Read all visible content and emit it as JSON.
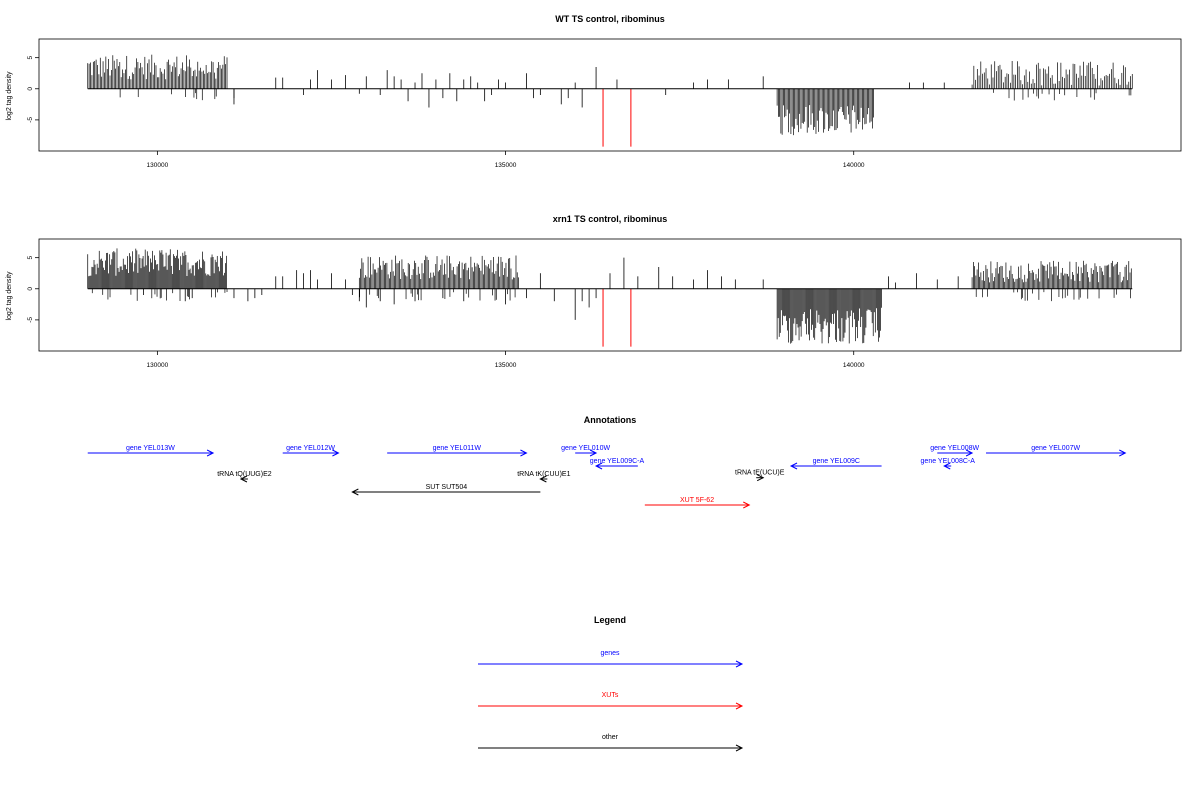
{
  "chart_data": [
    {
      "type": "bar",
      "title": "WT TS control, ribominus",
      "ylabel": "log2 tag density",
      "xlim": [
        128300,
        144700
      ],
      "ylim": [
        -10,
        8
      ],
      "x_ticks": [
        130000,
        135000,
        140000
      ],
      "y_ticks": [
        -5,
        0,
        5
      ],
      "grid": false,
      "red_marks": [
        {
          "x": 136400,
          "y": -9.3
        },
        {
          "x": 136800,
          "y": -9.3
        }
      ],
      "regions": [
        {
          "x_start": 129000,
          "x_end": 131000,
          "min": 1.5,
          "max": 5.5,
          "step": 20,
          "sign": 1
        },
        {
          "x_start": 138900,
          "x_end": 140300,
          "min": 2.5,
          "max": 7.5,
          "step": 18,
          "sign": -1
        },
        {
          "x_start": 141700,
          "x_end": 144000,
          "min": 0.5,
          "max": 4.5,
          "step": 25,
          "sign": 1
        }
      ],
      "sparse": [
        [
          131100,
          -2.5
        ],
        [
          131100,
          -1.5
        ],
        [
          131700,
          1.8
        ],
        [
          131800,
          1.8
        ],
        [
          132100,
          -1
        ],
        [
          132200,
          1.5
        ],
        [
          132300,
          3
        ],
        [
          132500,
          1.5
        ],
        [
          132700,
          2.2
        ],
        [
          132900,
          -0.8
        ],
        [
          133000,
          2
        ],
        [
          133200,
          -1
        ],
        [
          133300,
          3
        ],
        [
          133400,
          2
        ],
        [
          133500,
          1.5
        ],
        [
          133600,
          -2
        ],
        [
          133700,
          1
        ],
        [
          133800,
          2.5
        ],
        [
          133900,
          -3
        ],
        [
          134000,
          1.5
        ],
        [
          134100,
          -1.5
        ],
        [
          134200,
          2.5
        ],
        [
          134300,
          -2
        ],
        [
          134400,
          1.5
        ],
        [
          134500,
          2
        ],
        [
          134600,
          1
        ],
        [
          134700,
          -2
        ],
        [
          134800,
          -1
        ],
        [
          134900,
          1.5
        ],
        [
          135000,
          1
        ],
        [
          135300,
          2.5
        ],
        [
          135400,
          -1.5
        ],
        [
          135500,
          -1
        ],
        [
          135800,
          -2.5
        ],
        [
          135900,
          -1.5
        ],
        [
          136000,
          1
        ],
        [
          136100,
          -3
        ],
        [
          136300,
          3.5
        ],
        [
          136600,
          1.5
        ],
        [
          137300,
          -1
        ],
        [
          137700,
          1
        ],
        [
          137900,
          1.5
        ],
        [
          138200,
          1.5
        ],
        [
          138700,
          2
        ],
        [
          140800,
          1
        ],
        [
          141000,
          1
        ],
        [
          141300,
          1
        ]
      ]
    },
    {
      "type": "bar",
      "title": "xrn1 TS control, ribominus",
      "ylabel": "log2 tag density",
      "xlim": [
        128300,
        144700
      ],
      "ylim": [
        -10,
        8
      ],
      "x_ticks": [
        130000,
        135000,
        140000
      ],
      "y_ticks": [
        -5,
        0,
        5
      ],
      "grid": false,
      "red_marks": [
        {
          "x": 136400,
          "y": -9.3
        },
        {
          "x": 136800,
          "y": -9.3
        }
      ],
      "regions": [
        {
          "x_start": 129000,
          "x_end": 131000,
          "min": 2,
          "max": 6.5,
          "step": 15,
          "sign": 1
        },
        {
          "x_start": 132900,
          "x_end": 135200,
          "min": 1.5,
          "max": 5.5,
          "step": 18,
          "sign": 1
        },
        {
          "x_start": 138900,
          "x_end": 140400,
          "min": 3,
          "max": 9,
          "step": 15,
          "sign": -1
        },
        {
          "x_start": 141700,
          "x_end": 144000,
          "min": 1,
          "max": 4.5,
          "step": 18,
          "sign": 1
        }
      ],
      "sparse": [
        [
          129800,
          -1
        ],
        [
          130400,
          -2
        ],
        [
          130500,
          -1.5
        ],
        [
          131100,
          -1.5
        ],
        [
          131300,
          -2
        ],
        [
          131400,
          -1.5
        ],
        [
          131500,
          -1
        ],
        [
          131700,
          2
        ],
        [
          131800,
          2
        ],
        [
          132000,
          3
        ],
        [
          132100,
          2.5
        ],
        [
          132200,
          3
        ],
        [
          132300,
          1.5
        ],
        [
          132500,
          2.5
        ],
        [
          132700,
          1.5
        ],
        [
          132800,
          -1
        ],
        [
          132900,
          -2
        ],
        [
          133000,
          -3
        ],
        [
          133200,
          -2
        ],
        [
          133400,
          -2.5
        ],
        [
          133700,
          -2
        ],
        [
          134100,
          -1.5
        ],
        [
          134400,
          -2
        ],
        [
          135000,
          -2.5
        ],
        [
          135300,
          -1.5
        ],
        [
          135500,
          2.5
        ],
        [
          135700,
          -2
        ],
        [
          136000,
          -5
        ],
        [
          136100,
          -2
        ],
        [
          136200,
          -3
        ],
        [
          136300,
          -1.5
        ],
        [
          136500,
          2.5
        ],
        [
          136700,
          5
        ],
        [
          136900,
          2
        ],
        [
          137200,
          3.5
        ],
        [
          137400,
          2
        ],
        [
          137700,
          1.5
        ],
        [
          137900,
          3
        ],
        [
          138100,
          2
        ],
        [
          138300,
          1.5
        ],
        [
          138700,
          1.5
        ],
        [
          140500,
          2
        ],
        [
          140600,
          1
        ],
        [
          140900,
          2.5
        ],
        [
          141200,
          1.5
        ],
        [
          141500,
          2
        ]
      ]
    }
  ],
  "annotations": {
    "title": "Annotations",
    "xlim": [
      128300,
      144700
    ],
    "items": [
      {
        "label": "gene YEL013W",
        "x_start": 129000,
        "x_end": 130800,
        "row": 0,
        "color": "#0000ff",
        "dir": "right"
      },
      {
        "label": "gene YEL012W",
        "x_start": 131800,
        "x_end": 132600,
        "row": 0,
        "color": "#0000ff",
        "dir": "right"
      },
      {
        "label": "gene YEL011W",
        "x_start": 133300,
        "x_end": 135300,
        "row": 0,
        "color": "#0000ff",
        "dir": "right"
      },
      {
        "label": "gene YEL010W",
        "x_start": 136000,
        "x_end": 136300,
        "row": 0,
        "color": "#0000ff",
        "dir": "right"
      },
      {
        "label": "gene YEL009C-A",
        "x_start": 136300,
        "x_end": 136900,
        "row": 1,
        "color": "#0000ff",
        "dir": "left"
      },
      {
        "label": "gene YEL009C",
        "x_start": 139100,
        "x_end": 140400,
        "row": 1,
        "color": "#0000ff",
        "dir": "left"
      },
      {
        "label": "gene YEL008W",
        "x_start": 141200,
        "x_end": 141700,
        "row": 0,
        "color": "#0000ff",
        "dir": "right"
      },
      {
        "label": "gene YEL008C-A",
        "x_start": 141300,
        "x_end": 141400,
        "row": 1,
        "color": "#0000ff",
        "dir": "left"
      },
      {
        "label": "gene YEL007W",
        "x_start": 141900,
        "x_end": 143900,
        "row": 0,
        "color": "#0000ff",
        "dir": "right"
      },
      {
        "label": "tRNA tQ(UUG)E2",
        "x_start": 131200,
        "x_end": 131300,
        "row": 2,
        "color": "#000000",
        "dir": "left"
      },
      {
        "label": "tRNA tK(CUU)E1",
        "x_start": 135500,
        "x_end": 135600,
        "row": 2,
        "color": "#000000",
        "dir": "left"
      },
      {
        "label": "tRNA tE(UCU)E",
        "x_start": 138600,
        "x_end": 138700,
        "row": 1.9,
        "color": "#000000",
        "dir": "right"
      },
      {
        "label": "SUT SUT504",
        "x_start": 132800,
        "x_end": 135500,
        "row": 3,
        "color": "#000000",
        "dir": "left"
      },
      {
        "label": "XUT 5F-62",
        "x_start": 137000,
        "x_end": 138500,
        "row": 4,
        "color": "#ff0000",
        "dir": "right"
      }
    ]
  },
  "legend": {
    "title": "Legend",
    "items": [
      {
        "label": "genes",
        "color": "#0000ff"
      },
      {
        "label": "XUTs",
        "color": "#ff0000"
      },
      {
        "label": "other",
        "color": "#000000"
      }
    ]
  }
}
